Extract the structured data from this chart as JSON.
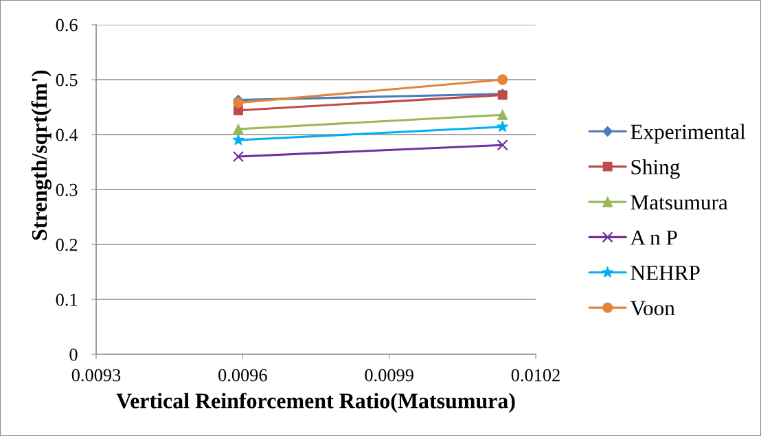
{
  "chart_data": {
    "type": "line",
    "xlabel": "Vertical Reinforcement Ratio(Matsumura)",
    "ylabel": "Strength/sqrt(fm')",
    "x": [
      0.009591,
      0.010132
    ],
    "series": [
      {
        "name": "Experimental",
        "color": "#4a7ebb",
        "marker": "diamond",
        "values": [
          0.463,
          0.474
        ]
      },
      {
        "name": "Shing",
        "color": "#be4b48",
        "marker": "square",
        "values": [
          0.444,
          0.472
        ]
      },
      {
        "name": "Matsumura",
        "color": "#98b954",
        "marker": "triangle",
        "values": [
          0.41,
          0.436
        ]
      },
      {
        "name": "A n P",
        "color": "#7030a0",
        "marker": "cross",
        "values": [
          0.36,
          0.381
        ]
      },
      {
        "name": "NEHRP",
        "color": "#00b0f0",
        "marker": "star",
        "values": [
          0.39,
          0.414
        ]
      },
      {
        "name": "Voon",
        "color": "#e2843c",
        "marker": "circle",
        "values": [
          0.458,
          0.5
        ]
      }
    ],
    "xlim": [
      0.0093,
      0.0102
    ],
    "xticks": [
      0.0093,
      0.0096,
      0.0099,
      0.0102
    ],
    "ylim": [
      0,
      0.6
    ],
    "yticks": [
      0,
      0.1,
      0.2,
      0.3,
      0.4,
      0.5,
      0.6
    ],
    "grid": "y",
    "legend": "right",
    "line_style": "solid"
  }
}
